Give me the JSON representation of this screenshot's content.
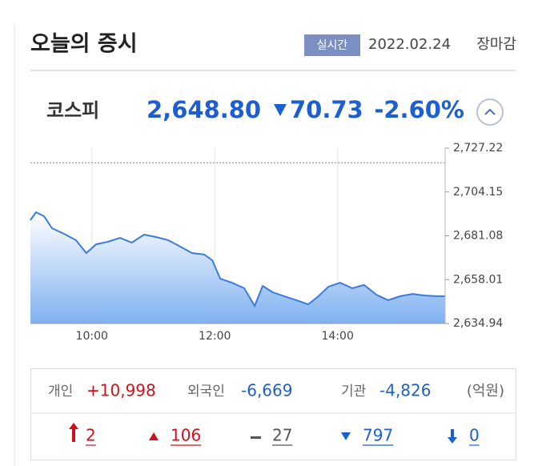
{
  "header": {
    "title": "오늘의 증시",
    "badge": "실시간",
    "date": "2022.02.24",
    "status": "장마감"
  },
  "index": {
    "name": "코스피",
    "value": "2,648.80",
    "change": "70.73",
    "change_pct": "-2.60%"
  },
  "chart_data": {
    "type": "line",
    "x": [
      9.0,
      9.09,
      9.22,
      9.35,
      9.55,
      9.74,
      9.91,
      10.07,
      10.26,
      10.46,
      10.65,
      10.85,
      11.05,
      11.24,
      11.44,
      11.63,
      11.83,
      11.96,
      12.09,
      12.28,
      12.48,
      12.65,
      12.78,
      12.94,
      13.13,
      13.33,
      13.52,
      13.69,
      13.85,
      14.04,
      14.24,
      14.43,
      14.63,
      14.82,
      15.02,
      15.22,
      15.41,
      15.61,
      15.75
    ],
    "series": [
      {
        "color": "#3a7be0",
        "values": [
          2689.3,
          2693.5,
          2691.4,
          2685.1,
          2682.1,
          2678.8,
          2672.0,
          2676.6,
          2677.9,
          2680.0,
          2677.5,
          2681.7,
          2680.4,
          2678.8,
          2675.4,
          2672.0,
          2671.2,
          2668.2,
          2658.5,
          2656.4,
          2653.5,
          2644.2,
          2654.7,
          2651.4,
          2649.3,
          2647.2,
          2645.0,
          2649.3,
          2654.3,
          2656.4,
          2653.5,
          2655.2,
          2650.1,
          2647.2,
          2649.3,
          2650.5,
          2649.7,
          2649.3,
          2649.3
        ]
      }
    ],
    "reference_line": 2719.53,
    "xlim": [
      9,
      15.75
    ],
    "xticks": [
      {
        "value": 10,
        "label": "10:00"
      },
      {
        "value": 12,
        "label": "12:00"
      },
      {
        "value": 14,
        "label": "14:00"
      }
    ],
    "ylim": [
      2634.94,
      2727.22
    ],
    "yticks": [
      {
        "value": 2727.22,
        "label": "2,727.22"
      },
      {
        "value": 2704.15,
        "label": "2,704.15"
      },
      {
        "value": 2681.08,
        "label": "2,681.08"
      },
      {
        "value": 2658.01,
        "label": "2,658.01"
      },
      {
        "value": 2634.94,
        "label": "2,634.94"
      }
    ],
    "grid": true
  },
  "investors": [
    {
      "label": "개인",
      "value": "+10,998"
    },
    {
      "label": "외국인",
      "value": "-6,669"
    },
    {
      "label": "기관",
      "value": "-4,826"
    }
  ],
  "unit": "(억원)",
  "breadth": [
    "2",
    "106",
    "27",
    "797",
    "0"
  ]
}
